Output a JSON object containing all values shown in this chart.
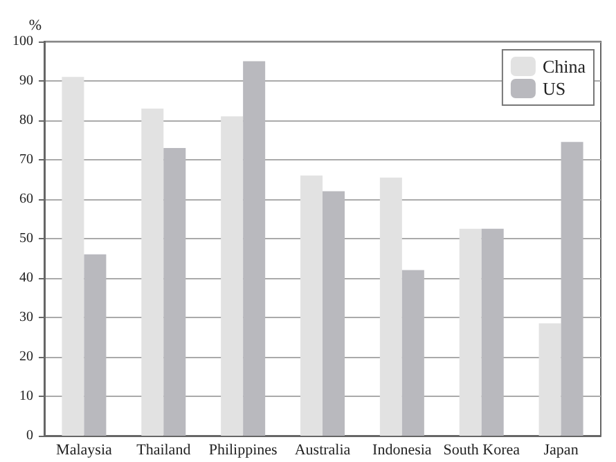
{
  "chart_data": {
    "type": "bar",
    "ylabel": "%",
    "categories": [
      "Malaysia",
      "Thailand",
      "Philippines",
      "Australia",
      "Indonesia",
      "South Korea",
      "Japan"
    ],
    "series": [
      {
        "name": "China",
        "color": "#e2e2e2",
        "values": [
          91,
          83,
          81,
          66,
          65.5,
          52.5,
          28.5
        ]
      },
      {
        "name": "US",
        "color": "#b9b9be",
        "values": [
          46,
          73,
          95,
          62,
          42,
          52.5,
          74.5
        ]
      }
    ],
    "ylim": [
      0,
      100
    ],
    "yticks": [
      0,
      10,
      20,
      30,
      40,
      50,
      60,
      70,
      80,
      90,
      100
    ],
    "grid": "y",
    "legend": "top right"
  }
}
